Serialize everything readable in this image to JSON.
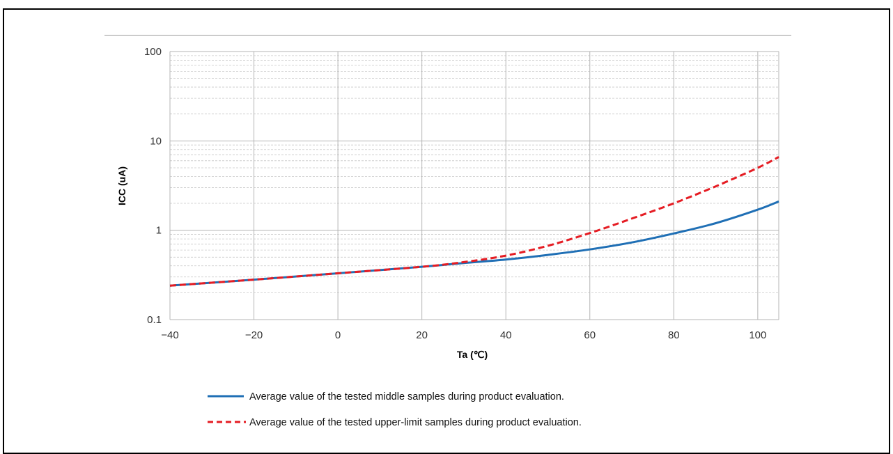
{
  "chart_data": {
    "type": "line",
    "xlabel": "Ta (℃)",
    "ylabel": "ICC (uA)",
    "xlim": [
      -40,
      105
    ],
    "ylim": [
      0.1,
      100
    ],
    "yscale": "log",
    "grid": true,
    "legend_position": "bottom",
    "x_ticks": [
      "−40",
      "−20",
      "0",
      "20",
      "40",
      "60",
      "80",
      "100"
    ],
    "x_tick_values": [
      -40,
      -20,
      0,
      20,
      40,
      60,
      80,
      100
    ],
    "y_ticks": [
      "0.1",
      "1",
      "10",
      "100"
    ],
    "y_tick_values": [
      0.1,
      1,
      10,
      100
    ],
    "series": [
      {
        "name": "Average value of the tested middle samples during product evaluation.",
        "color": "#1f6fb5",
        "dash": "solid",
        "x": [
          -40,
          -20,
          0,
          20,
          30,
          40,
          50,
          60,
          70,
          80,
          90,
          100,
          105
        ],
        "y": [
          0.24,
          0.28,
          0.33,
          0.39,
          0.43,
          0.47,
          0.53,
          0.61,
          0.73,
          0.92,
          1.2,
          1.7,
          2.1
        ]
      },
      {
        "name": "Average value of the tested upper-limit samples during product evaluation.",
        "color": "#e51c23",
        "dash": "dashed",
        "x": [
          -40,
          -20,
          0,
          20,
          30,
          40,
          50,
          60,
          70,
          80,
          90,
          100,
          105
        ],
        "y": [
          0.24,
          0.28,
          0.33,
          0.39,
          0.44,
          0.52,
          0.67,
          0.93,
          1.35,
          2.0,
          3.1,
          5.0,
          6.6
        ]
      }
    ]
  }
}
